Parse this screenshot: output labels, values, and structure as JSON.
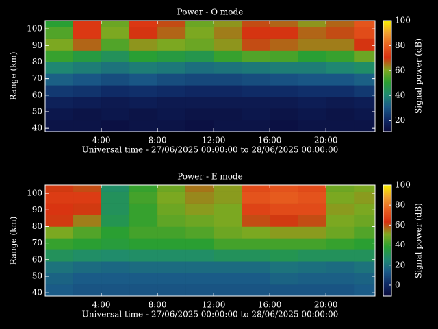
{
  "chart_data": [
    {
      "type": "heatmap",
      "title": "Power - O mode",
      "xlabel": "Universal time - 27/06/2025 00:00:00 to 28/06/2025 00:00:00",
      "ylabel": "Range (km)",
      "x_bins": [
        0,
        2,
        4,
        6,
        8,
        10,
        12,
        14,
        16,
        18,
        20,
        22,
        23.5
      ],
      "y_bins": [
        38,
        45,
        52,
        59,
        66,
        73,
        80,
        87,
        94,
        101,
        105
      ],
      "z": [
        [
          14,
          14,
          13,
          14,
          14,
          13,
          14,
          14,
          13,
          14,
          14,
          14
        ],
        [
          15,
          14,
          15,
          14,
          15,
          14,
          14,
          15,
          14,
          15,
          14,
          15
        ],
        [
          18,
          17,
          16,
          17,
          16,
          16,
          16,
          16,
          16,
          17,
          16,
          17
        ],
        [
          24,
          23,
          21,
          22,
          21,
          20,
          20,
          21,
          21,
          22,
          22,
          24
        ],
        [
          32,
          30,
          28,
          30,
          28,
          27,
          27,
          28,
          29,
          30,
          30,
          32
        ],
        [
          40,
          38,
          36,
          38,
          37,
          35,
          36,
          37,
          38,
          38,
          40,
          42
        ],
        [
          52,
          48,
          44,
          50,
          48,
          46,
          52,
          55,
          54,
          50,
          52,
          58
        ],
        [
          60,
          66,
          55,
          62,
          60,
          58,
          62,
          68,
          66,
          64,
          64,
          70
        ],
        [
          55,
          72,
          60,
          70,
          66,
          60,
          64,
          70,
          70,
          66,
          68,
          76
        ],
        [
          50,
          72,
          58,
          72,
          68,
          58,
          62,
          68,
          66,
          62,
          66,
          78
        ]
      ],
      "xlim": [
        0,
        23.5
      ],
      "ylim": [
        38,
        105
      ],
      "xticks": [
        {
          "value": 4,
          "label": "4:00"
        },
        {
          "value": 8,
          "label": "8:00"
        },
        {
          "value": 12,
          "label": "12:00"
        },
        {
          "value": 16,
          "label": "16:00"
        },
        {
          "value": 20,
          "label": "20:00"
        }
      ],
      "yticks": [
        40,
        50,
        60,
        70,
        80,
        90,
        100
      ],
      "colorbar": {
        "label": "Signal power (dB)",
        "clim": [
          11,
          100
        ],
        "ticks": [
          20,
          40,
          60,
          80,
          100
        ]
      },
      "colormap": [
        "#0a0a3a",
        "#0f2a66",
        "#1a5a88",
        "#1f8a70",
        "#2aa030",
        "#80a820",
        "#d83010",
        "#e86020",
        "#f0a030",
        "#f8f000"
      ]
    },
    {
      "type": "heatmap",
      "title": "Power - E mode",
      "xlabel": "Universal time - 27/06/2025 00:00:00 to 28/06/2025 00:00:00",
      "ylabel": "Range (km)",
      "x_bins": [
        0,
        2,
        4,
        6,
        8,
        10,
        12,
        14,
        16,
        18,
        20,
        22,
        23.5
      ],
      "y_bins": [
        38,
        45,
        52,
        59,
        66,
        73,
        80,
        87,
        94,
        101,
        105
      ],
      "z": [
        [
          14,
          12,
          12,
          12,
          12,
          12,
          12,
          12,
          12,
          12,
          12,
          14
        ],
        [
          16,
          14,
          14,
          14,
          14,
          14,
          14,
          14,
          16,
          15,
          15,
          16
        ],
        [
          20,
          18,
          17,
          18,
          18,
          18,
          18,
          18,
          20,
          19,
          18,
          20
        ],
        [
          30,
          28,
          27,
          28,
          28,
          28,
          30,
          30,
          32,
          30,
          30,
          30
        ],
        [
          40,
          38,
          36,
          38,
          38,
          38,
          42,
          42,
          42,
          42,
          40,
          38
        ],
        [
          50,
          44,
          38,
          42,
          42,
          44,
          48,
          50,
          52,
          52,
          48,
          44
        ],
        [
          62,
          55,
          32,
          40,
          46,
          48,
          50,
          60,
          62,
          60,
          50,
          48
        ],
        [
          64,
          62,
          30,
          40,
          48,
          52,
          50,
          68,
          70,
          70,
          52,
          50
        ],
        [
          66,
          66,
          30,
          42,
          50,
          54,
          52,
          72,
          74,
          72,
          50,
          52
        ],
        [
          62,
          60,
          28,
          40,
          48,
          56,
          52,
          70,
          72,
          70,
          48,
          50
        ]
      ],
      "xlim": [
        0,
        23.5
      ],
      "ylim": [
        38,
        105
      ],
      "xticks": [
        {
          "value": 4,
          "label": "4:00"
        },
        {
          "value": 8,
          "label": "8:00"
        },
        {
          "value": 12,
          "label": "12:00"
        },
        {
          "value": 16,
          "label": "16:00"
        },
        {
          "value": 20,
          "label": "20:00"
        }
      ],
      "yticks": [
        40,
        50,
        60,
        70,
        80,
        90,
        100
      ],
      "colorbar": {
        "label": "Signal power (dB)",
        "clim": [
          -11,
          100
        ],
        "ticks": [
          0,
          20,
          40,
          60,
          80,
          100
        ]
      },
      "colormap": [
        "#0a0a3a",
        "#0f2a66",
        "#1a5a88",
        "#1f8a70",
        "#2aa030",
        "#80a820",
        "#d83010",
        "#e86020",
        "#f0a030",
        "#f8f000"
      ]
    }
  ]
}
